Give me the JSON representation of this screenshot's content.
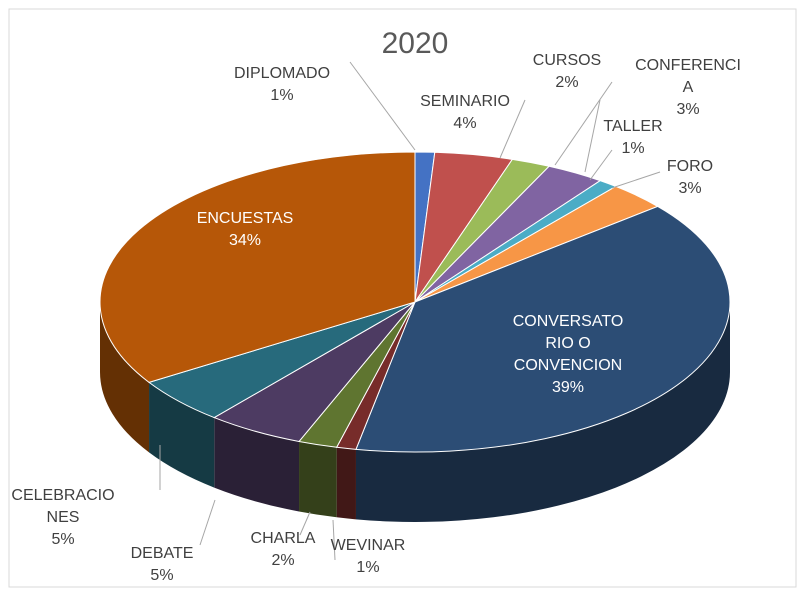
{
  "chart_data": {
    "type": "pie",
    "title": "2020",
    "categories": [
      "DIPLOMADO",
      "SEMINARIO",
      "CURSOS",
      "CONFERENCIA",
      "TALLER",
      "FORO",
      "CONVERSATORIO O CONVENCION",
      "WEVINAR",
      "CHARLA",
      "DEBATE",
      "CELEBRACIONES",
      "ENCUESTAS"
    ],
    "values": [
      1,
      4,
      2,
      3,
      1,
      3,
      39,
      1,
      2,
      5,
      5,
      34
    ],
    "value_labels": [
      "1%",
      "4%",
      "2%",
      "3%",
      "1%",
      "3%",
      "39%",
      "1%",
      "2%",
      "5%",
      "5%",
      "34%"
    ],
    "colors": [
      "#4472c4",
      "#c0504d",
      "#9bbb59",
      "#8064a2",
      "#4bacc6",
      "#f79646",
      "#2c4d75",
      "#772c2a",
      "#5f7530",
      "#4d3b62",
      "#276a7c",
      "#b65708"
    ]
  }
}
